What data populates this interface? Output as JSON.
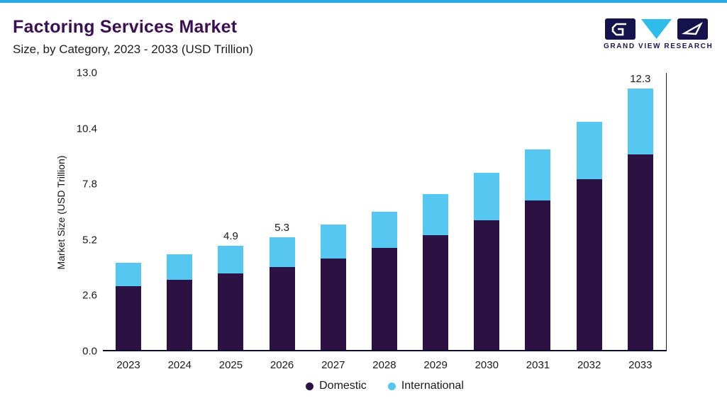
{
  "header": {
    "title": "Factoring Services Market",
    "subtitle": "Size, by Category, 2023 - 2033 (USD Trillion)"
  },
  "logo": {
    "text": "GRAND VIEW RESEARCH"
  },
  "colors": {
    "top_accent": "#29a9e1",
    "title_purple": "#3b1053",
    "logo_navy": "#16124b",
    "logo_cyan": "#2fbcea",
    "domestic": "#2b1242",
    "international": "#56c7f0"
  },
  "chart_data": {
    "type": "bar",
    "stacked": true,
    "title": "Factoring Services Market Size, by Category, 2023 - 2033 (USD Trillion)",
    "categories": [
      "2023",
      "2024",
      "2025",
      "2026",
      "2027",
      "2028",
      "2029",
      "2030",
      "2031",
      "2032",
      "2033"
    ],
    "series": [
      {
        "name": "Domestic",
        "color": "#2b1242",
        "values": [
          3.0,
          3.3,
          3.6,
          3.9,
          4.3,
          4.8,
          5.4,
          6.1,
          7.0,
          8.0,
          9.2
        ]
      },
      {
        "name": "International",
        "color": "#56c7f0",
        "values": [
          1.1,
          1.2,
          1.3,
          1.4,
          1.6,
          1.7,
          1.9,
          2.2,
          2.4,
          2.7,
          3.1
        ]
      }
    ],
    "bar_labels": [
      null,
      null,
      "4.9",
      "5.3",
      null,
      null,
      null,
      null,
      null,
      null,
      "12.3"
    ],
    "xlabel": "",
    "ylabel": "Market Size (USD Trillion)",
    "yticks": [
      0.0,
      2.6,
      5.2,
      7.8,
      10.4,
      13.0
    ],
    "ylim": [
      0,
      13.0
    ],
    "grid": false,
    "legend_position": "bottom"
  }
}
